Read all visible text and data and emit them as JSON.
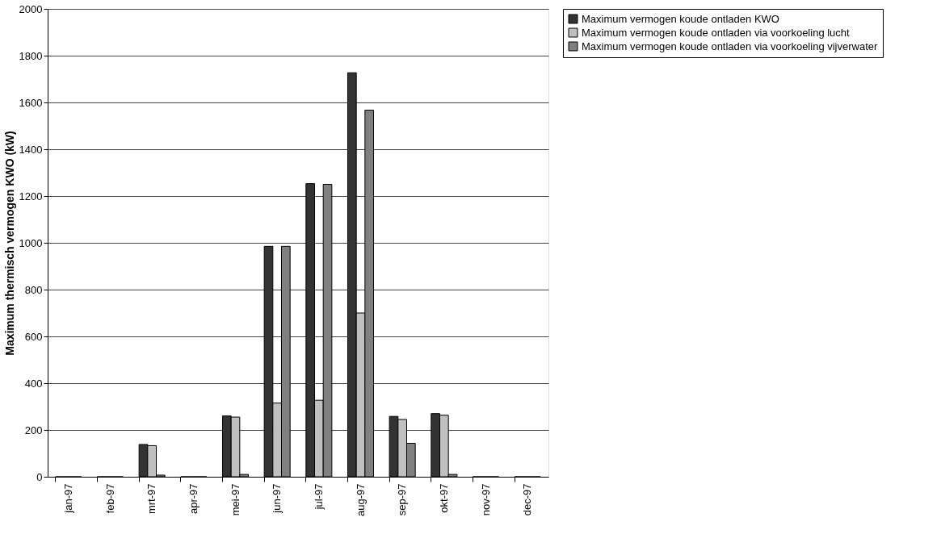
{
  "chart_data": {
    "type": "bar",
    "ylabel": "Maximum thermisch vermogen KWO (kW)",
    "categories": [
      "jan-97",
      "feb-97",
      "mrt-97",
      "apr-97",
      "mei-97",
      "jun-97",
      "jul-97",
      "aug-97",
      "sep-97",
      "okt-97",
      "nov-97",
      "dec-97"
    ],
    "series": [
      {
        "name": "Maximum vermogen koude ontladen KWO",
        "color": "#333333",
        "values": [
          0,
          0,
          138,
          0,
          260,
          985,
          1253,
          1727,
          258,
          270,
          0,
          0
        ]
      },
      {
        "name": "Maximum vermogen koude ontladen via voorkoeling lucht",
        "color": "#c0c0c0",
        "values": [
          0,
          0,
          133,
          0,
          255,
          315,
          327,
          700,
          245,
          263,
          0,
          0
        ]
      },
      {
        "name": "Maximum vermogen koude ontladen via voorkoeling vijverwater",
        "color": "#808080",
        "values": [
          0,
          0,
          7,
          0,
          10,
          985,
          1250,
          1567,
          143,
          10,
          0,
          0
        ]
      }
    ],
    "ylim": [
      0,
      2000
    ],
    "yticks": [
      0,
      200,
      400,
      600,
      800,
      1000,
      1200,
      1400,
      1600,
      1800,
      2000
    ],
    "grid": "y",
    "legend": "right"
  }
}
